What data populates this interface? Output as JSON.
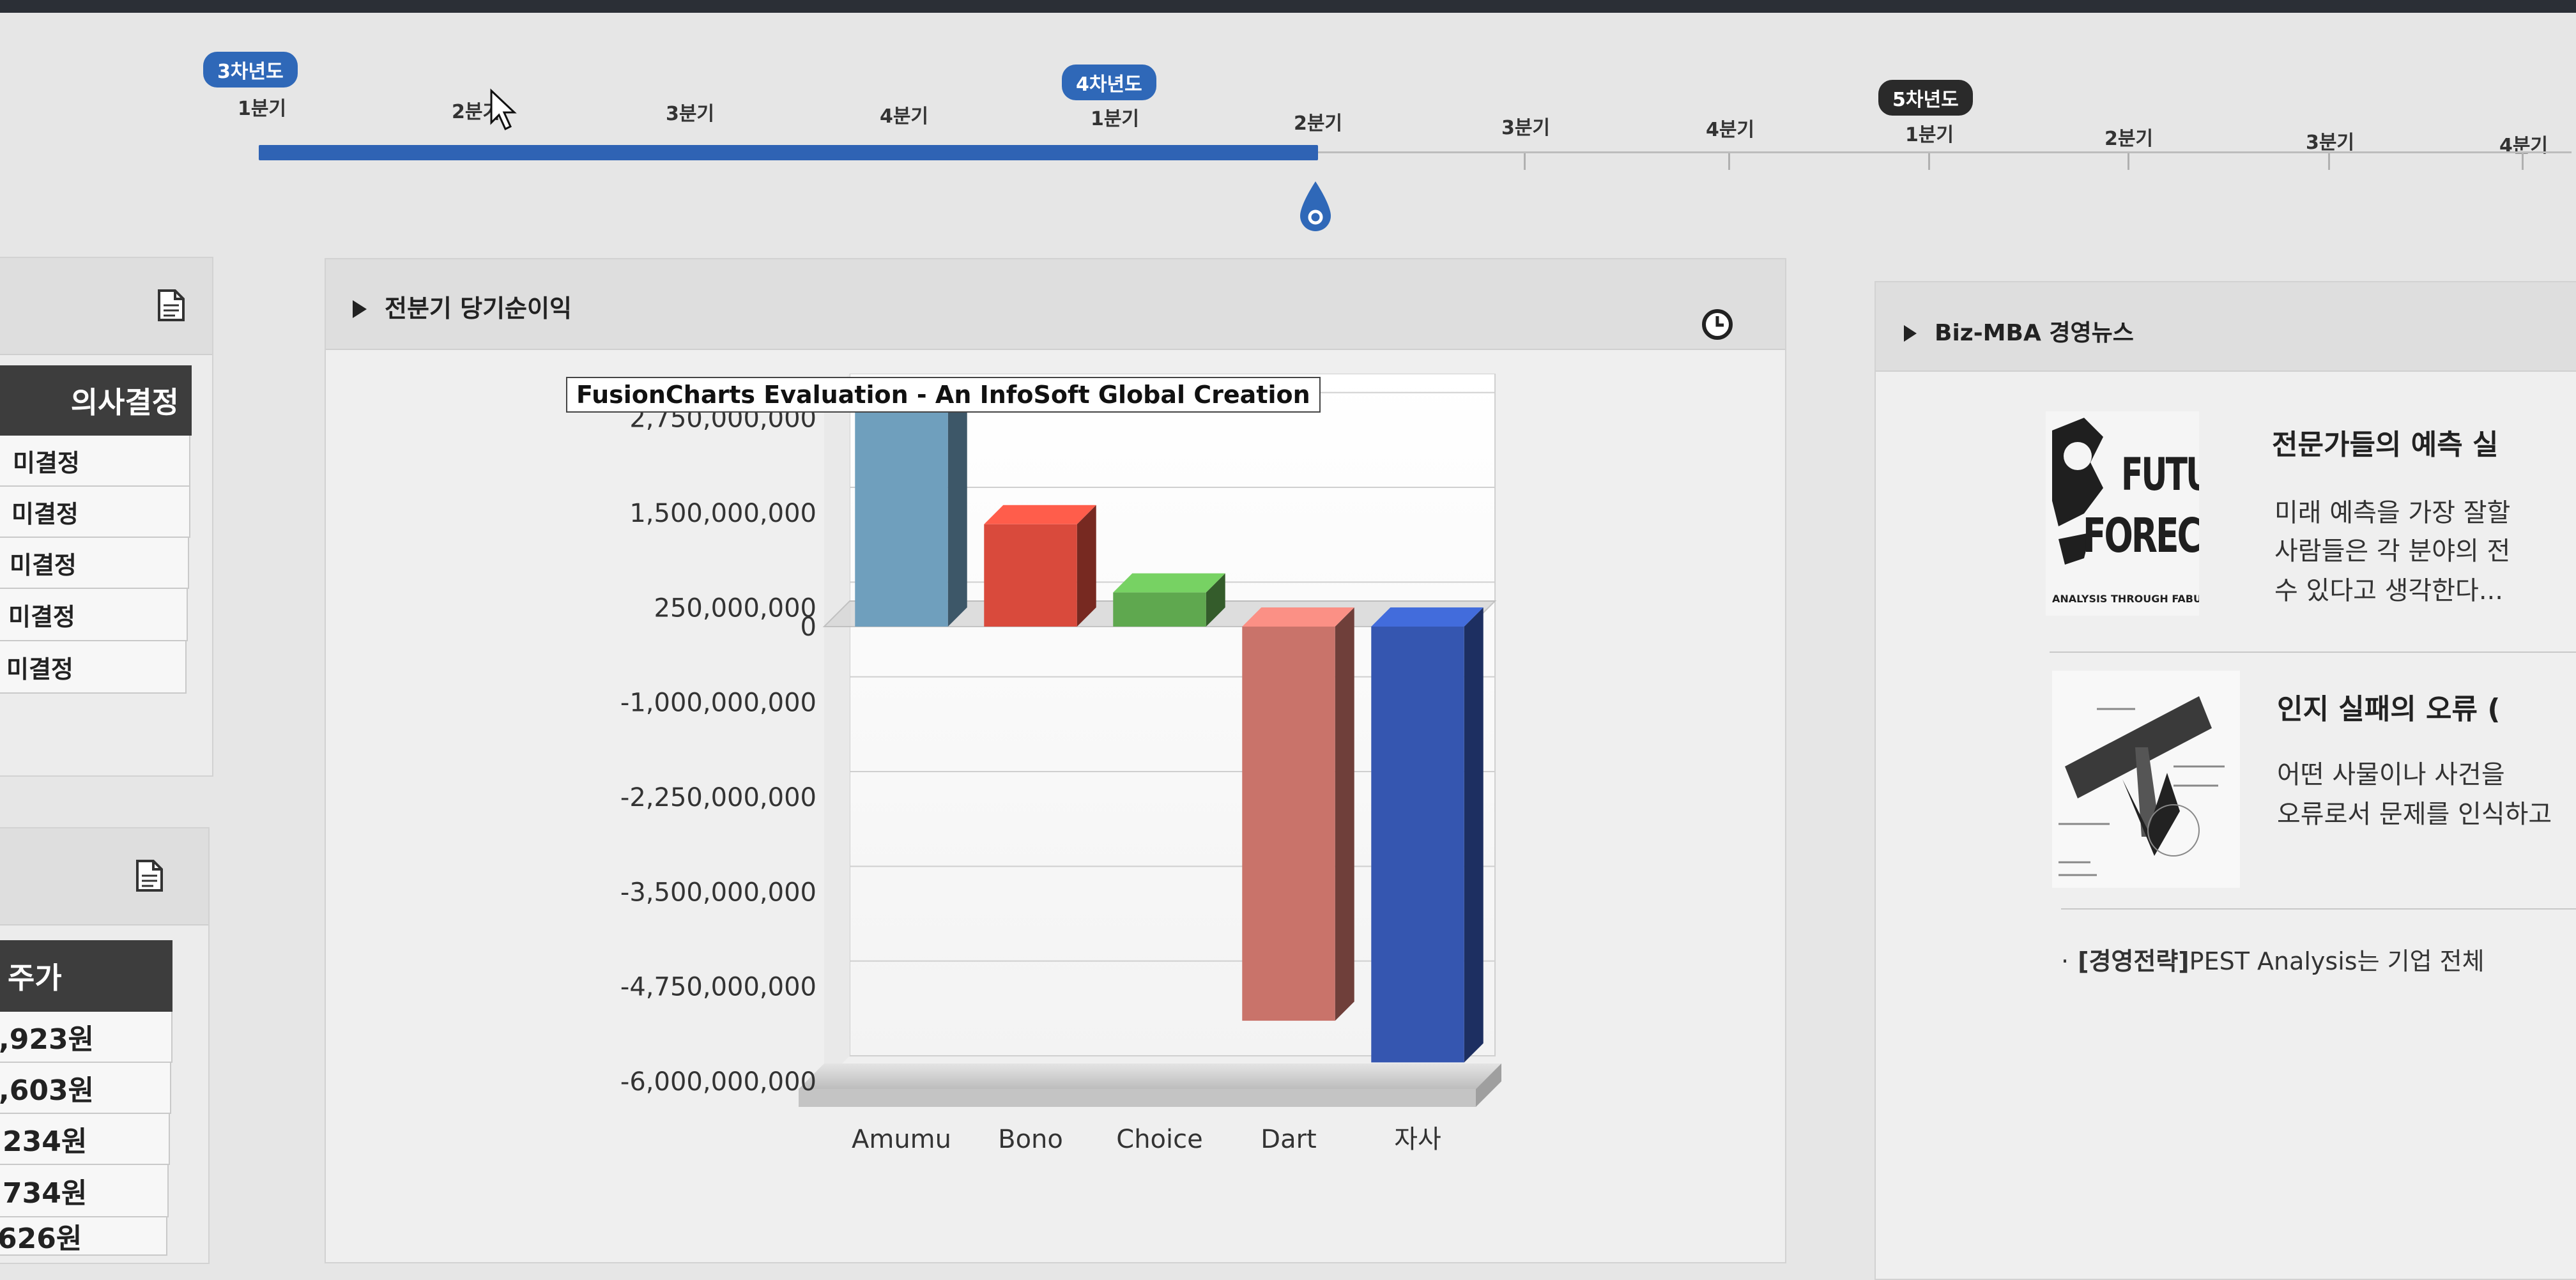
{
  "timeline": {
    "years": [
      {
        "label": "3차년도",
        "style": "blue"
      },
      {
        "label": "4차년도",
        "style": "blue"
      },
      {
        "label": "5차년도",
        "style": "dark"
      }
    ],
    "quarters": [
      "1분기",
      "2분기",
      "3분기",
      "4분기",
      "1분기",
      "2분기",
      "3분기",
      "4분기",
      "1분기",
      "2분기",
      "3분기",
      "4분기"
    ],
    "progress_quarter_index": 5,
    "colors": {
      "fill": "#2f63b4",
      "handle": "#2f68b8"
    }
  },
  "left_panel_1": {
    "header": "의사결정",
    "rows": [
      "미결정",
      "미결정",
      "미결정",
      "미결정",
      "미결정"
    ],
    "icon": "document-icon"
  },
  "left_panel_2": {
    "header": "주가",
    "rows": [
      ",923원",
      ",603원",
      "234원",
      "734원",
      "626원"
    ],
    "icon": "document-icon"
  },
  "main_panel": {
    "title": "전분기 당기순이익",
    "icon": "clock-icon"
  },
  "chart_data": {
    "type": "bar",
    "watermark": "FusionCharts Evaluation - An InfoSoft Global Creation",
    "categories": [
      "Amumu",
      "Bono",
      "Choice",
      "Dart",
      "자사"
    ],
    "values": [
      3000000000,
      1350000000,
      450000000,
      -5200000000,
      -5750000000
    ],
    "colors": [
      "#6f9fbd",
      "#d94a3c",
      "#5fa84f",
      "#c9736a",
      "#3556b0"
    ],
    "y_ticks": [
      {
        "value": 2750000000,
        "label": "2,750,000,000"
      },
      {
        "value": 1500000000,
        "label": "1,500,000,000"
      },
      {
        "value": 250000000,
        "label": "250,000,000"
      },
      {
        "value": 0,
        "label": "0"
      },
      {
        "value": -1000000000,
        "label": "-1,000,000,000"
      },
      {
        "value": -2250000000,
        "label": "-2,250,000,000"
      },
      {
        "value": -3500000000,
        "label": "-3,500,000,000"
      },
      {
        "value": -4750000000,
        "label": "-4,750,000,000"
      },
      {
        "value": -6000000000,
        "label": "-6,000,000,000"
      }
    ],
    "ylim": [
      -6000000000,
      3000000000
    ],
    "style": "3d-column",
    "grid": true
  },
  "news_panel": {
    "title": "Biz-MBA 경영뉴스",
    "items": [
      {
        "title": "전문가들의 예측 실",
        "lines": [
          "미래 예측을 가장 잘할",
          "사람들은 각 분야의 전",
          "수 있다고 생각한다..."
        ],
        "thumb_text": [
          "FUTUI",
          "FORECA!",
          "ANALYSIS THROUGH FABULO"
        ]
      },
      {
        "title": "인지 실패의 오류 (",
        "lines": [
          "어떤 사물이나 사건을 ",
          "오류로서 문제를 인식하고"
        ]
      }
    ],
    "link": {
      "tag": "[경영전략]",
      "text": "PEST Analysis는 기업 전체"
    }
  }
}
